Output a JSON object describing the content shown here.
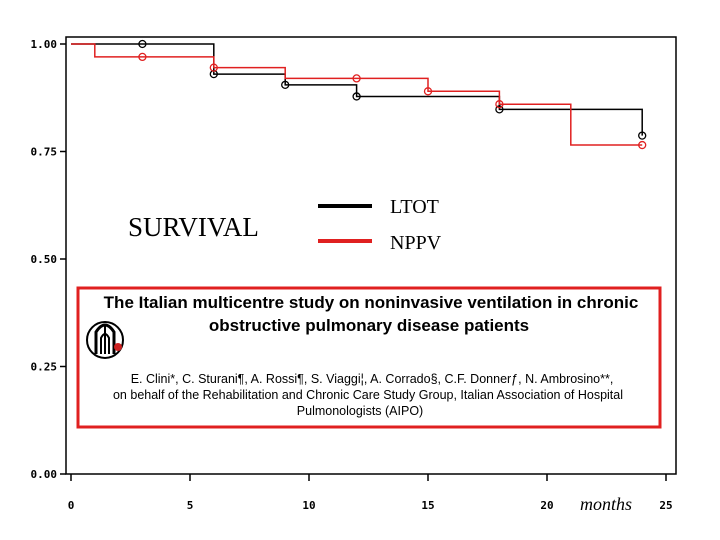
{
  "chart_data": {
    "type": "line",
    "step": true,
    "x": {
      "ticks": [
        0,
        5,
        10,
        15,
        20,
        25
      ],
      "lim": [
        0,
        25
      ],
      "label": "months"
    },
    "y": {
      "ticks": [
        "0.00",
        "0.25",
        "0.50",
        "0.75",
        "1.00"
      ],
      "tick_values": [
        0,
        0.25,
        0.5,
        0.75,
        1.0
      ],
      "lim": [
        0,
        1.0
      ]
    },
    "label_text": "SURVIVAL",
    "grid": false,
    "legend_position": "upper-center",
    "series": [
      {
        "name": "LTOT",
        "color": "#000000",
        "steps": [
          [
            0,
            1.0
          ],
          [
            6,
            0.93
          ],
          [
            9,
            0.905
          ],
          [
            12,
            0.878
          ],
          [
            18,
            0.848
          ],
          [
            24,
            0.787
          ]
        ],
        "end_x": 24,
        "censor_marks": [
          [
            3,
            1.0
          ],
          [
            6,
            0.93
          ],
          [
            9,
            0.905
          ],
          [
            12,
            0.878
          ],
          [
            18,
            0.848
          ],
          [
            24,
            0.787
          ]
        ]
      },
      {
        "name": "NPPV",
        "color": "#e02020",
        "steps": [
          [
            0,
            1.0
          ],
          [
            1,
            0.97
          ],
          [
            6,
            0.945
          ],
          [
            9,
            0.92
          ],
          [
            15,
            0.89
          ],
          [
            18,
            0.86
          ],
          [
            21,
            0.765
          ]
        ],
        "end_x": 24,
        "censor_marks": [
          [
            3,
            0.97
          ],
          [
            6,
            0.945
          ],
          [
            12,
            0.92
          ],
          [
            15,
            0.89
          ],
          [
            18,
            0.86
          ],
          [
            24,
            0.765
          ]
        ]
      }
    ]
  },
  "colors": {
    "frame": "#000000",
    "box_border": "#e02020",
    "logo_red": "#cc2222"
  },
  "info_box": {
    "title_line1": "The Italian multicentre study on noninvasive ventilation in chronic",
    "title_line2": "obstructive pulmonary disease patients",
    "authors": "E. Clini*, C. Sturani¶, A. Rossi¶, S. Viaggi¦, A. Corrado§, C.F. Donnerƒ, N. Ambrosino**,",
    "affil_line1": "on behalf of the Rehabilitation and Chronic Care Study Group, Italian Association of Hospital",
    "affil_line2": "Pulmonologists (AIPO)",
    "logo_icon": "aipo-logo-icon"
  }
}
